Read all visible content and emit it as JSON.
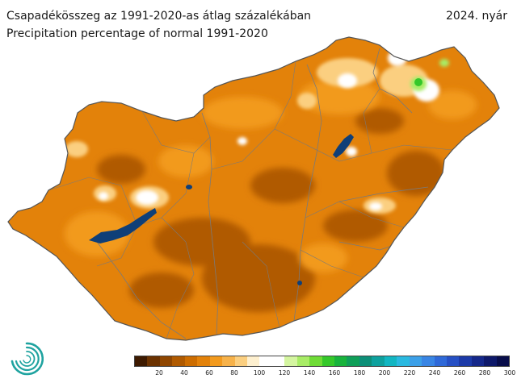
{
  "header": {
    "title_hu": "Csapadékösszeg az 1991-2020-as átlag százalékában",
    "title_en": "Precipitation percentage of normal 1991-2020",
    "period": "2024. nyár"
  },
  "legend": {
    "ticks": [
      "20",
      "40",
      "60",
      "80",
      "100",
      "120",
      "140",
      "160",
      "180",
      "200",
      "220",
      "240",
      "260",
      "280",
      "300"
    ],
    "colors": [
      "#3d1a00",
      "#6b3200",
      "#8f4600",
      "#b05a00",
      "#cd6d00",
      "#e3820a",
      "#f29a1e",
      "#f7b24a",
      "#fbcf80",
      "#fef0cf",
      "#ffffff",
      "#ffffff",
      "#d4f5a0",
      "#a8ec66",
      "#6fdc36",
      "#35c82a",
      "#18b33c",
      "#0f9f58",
      "#0d8f78",
      "#0ea19e",
      "#12b6c2",
      "#2ab9e0",
      "#3ca0e8",
      "#3985e4",
      "#2f69d8",
      "#2650c4",
      "#1c3aa8",
      "#15288a",
      "#0e196a",
      "#080d4a"
    ]
  },
  "map": {
    "color_outside": "#ffffff",
    "color_deficit_strong": "#b05a00",
    "color_deficit_main": "#e3820a",
    "color_deficit_light": "#f29a1e",
    "color_near_normal": "#fbcf80",
    "color_normal": "#ffffff",
    "color_surplus": "#a8ec66",
    "color_surplus_strong": "#35c82a",
    "color_lake": "#0f3f78",
    "color_border": "#555555",
    "color_river": "#7a7a7a"
  },
  "logo": {
    "icon": "omsz-spiral-logo"
  }
}
